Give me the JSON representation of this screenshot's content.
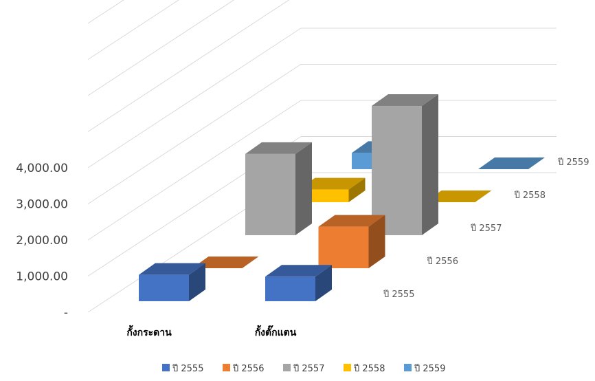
{
  "chart_data": {
    "type": "bar",
    "subtype": "3d-column",
    "categories": [
      "กั้งกระดาน",
      "กั้งตั๊กแตน"
    ],
    "series": [
      {
        "name": "ปี 2555",
        "values": [
          730,
          680
        ],
        "color": "#4472C4"
      },
      {
        "name": "ปี 2556",
        "values": [
          0,
          1150
        ],
        "color": "#ED7D31"
      },
      {
        "name": "ปี 2557",
        "values": [
          2250,
          3580
        ],
        "color": "#A5A5A5"
      },
      {
        "name": "ปี 2558",
        "values": [
          350,
          0
        ],
        "color": "#FFC000"
      },
      {
        "name": "ปี 2559",
        "values": [
          450,
          0
        ],
        "color": "#5B9BD5"
      }
    ],
    "y_tick_labels": [
      "-",
      "1,000.00",
      "2,000.00",
      "3,000.00",
      "4,000.00"
    ],
    "ylim": [
      0,
      4000
    ],
    "legend_position": "bottom",
    "grid": true
  }
}
